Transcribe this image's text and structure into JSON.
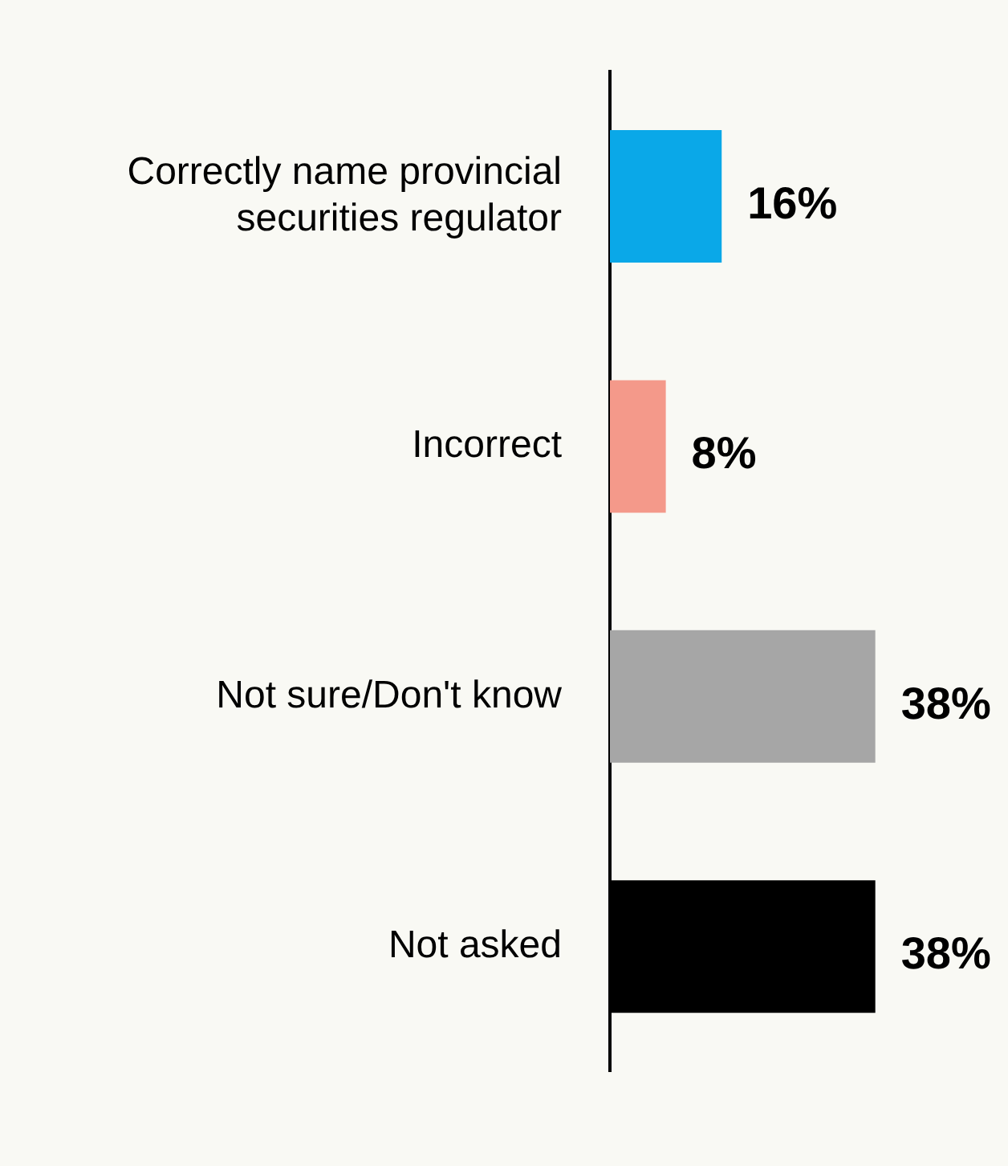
{
  "chart_data": {
    "type": "bar",
    "orientation": "horizontal",
    "categories": [
      "Correctly name provincial securities regulator",
      "Incorrect",
      "Not sure/Don't know",
      "Not asked"
    ],
    "values": [
      16,
      8,
      38,
      38
    ],
    "colors": [
      "#0aa8e8",
      "#f4998a",
      "#a6a6a6",
      "#000000"
    ],
    "tick_labels": "y",
    "data_labels": true,
    "value_labels": [
      "16%",
      "8%",
      "38%",
      "38%"
    ],
    "legend": false
  }
}
